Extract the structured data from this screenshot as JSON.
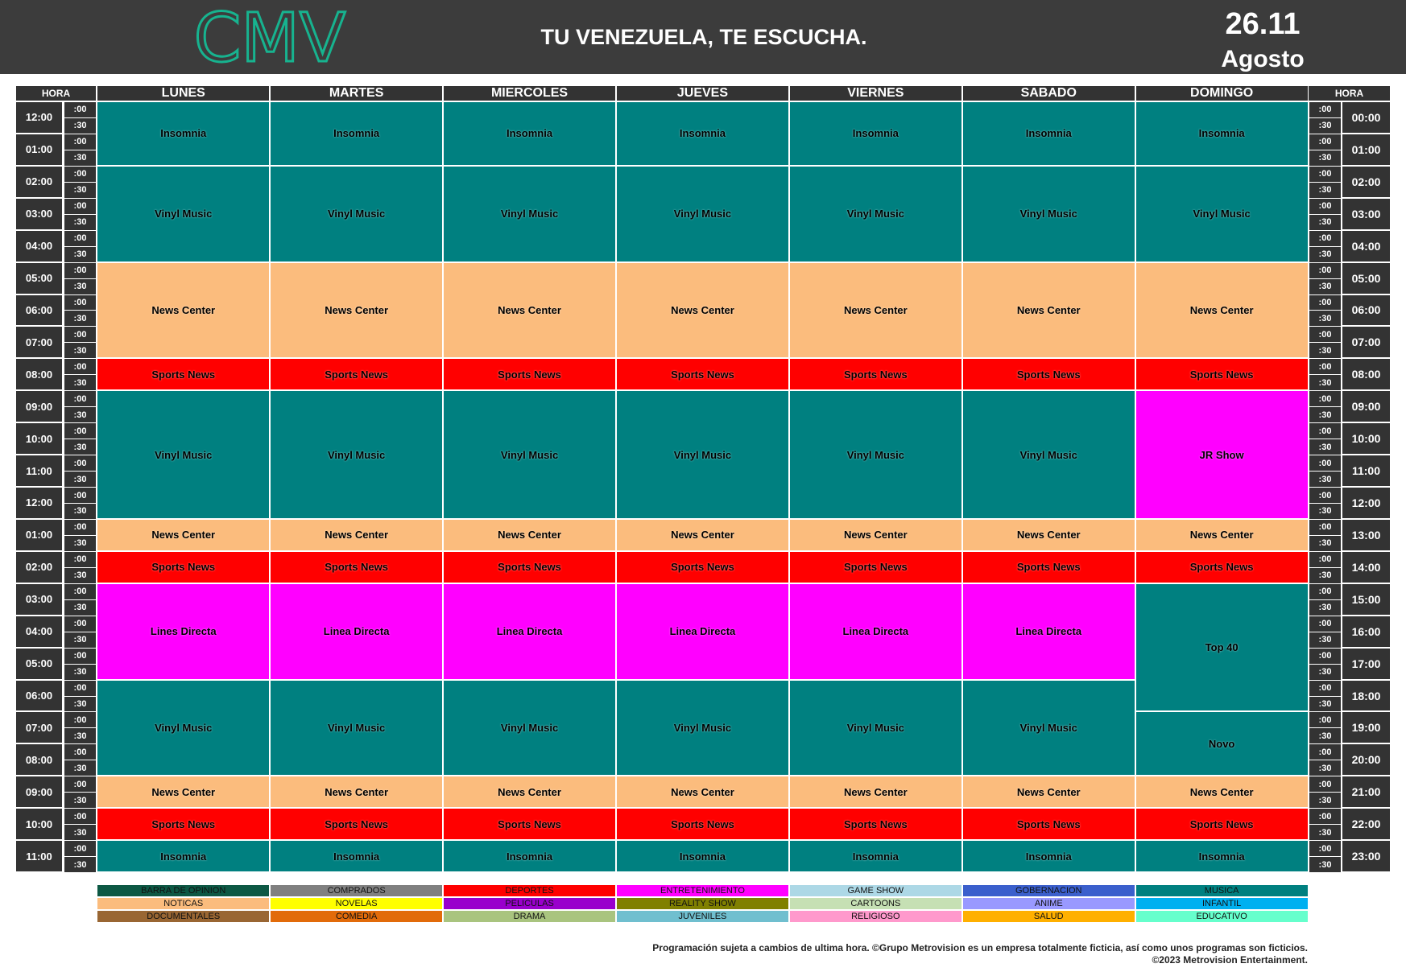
{
  "header": {
    "logo": "CMV",
    "slogan": "TU VENEZUELA, TE ESCUCHA.",
    "date": "26.11",
    "month": "Agosto"
  },
  "schedule": {
    "hour_heading": "HORA",
    "half_labels": [
      ":00",
      ":30"
    ],
    "left_hours": [
      "12:00",
      "01:00",
      "02:00",
      "03:00",
      "04:00",
      "05:00",
      "06:00",
      "07:00",
      "08:00",
      "09:00",
      "10:00",
      "11:00",
      "12:00",
      "01:00",
      "02:00",
      "03:00",
      "04:00",
      "05:00",
      "06:00",
      "07:00",
      "08:00",
      "09:00",
      "10:00",
      "11:00"
    ],
    "right_hours": [
      "00:00",
      "01:00",
      "02:00",
      "03:00",
      "04:00",
      "05:00",
      "06:00",
      "07:00",
      "08:00",
      "09:00",
      "10:00",
      "11:00",
      "12:00",
      "13:00",
      "14:00",
      "15:00",
      "16:00",
      "17:00",
      "18:00",
      "19:00",
      "20:00",
      "21:00",
      "22:00",
      "23:00"
    ],
    "days": [
      {
        "name": "LUNES",
        "programs": [
          {
            "name": "Insomnia",
            "hours": 2,
            "color": "#008080"
          },
          {
            "name": "Vinyl Music",
            "hours": 3,
            "color": "#008080"
          },
          {
            "name": "News Center",
            "hours": 3,
            "color": "#fbbc7d"
          },
          {
            "name": "Sports News",
            "hours": 1,
            "color": "#ff0000"
          },
          {
            "name": "Vinyl Music",
            "hours": 4,
            "color": "#008080"
          },
          {
            "name": "News Center",
            "hours": 1,
            "color": "#fbbc7d"
          },
          {
            "name": "Sports News",
            "hours": 1,
            "color": "#ff0000"
          },
          {
            "name": "Lines Directa",
            "hours": 3,
            "color": "#ff00ff"
          },
          {
            "name": "Vinyl Music",
            "hours": 3,
            "color": "#008080"
          },
          {
            "name": "News Center",
            "hours": 1,
            "color": "#fbbc7d"
          },
          {
            "name": "Sports News",
            "hours": 1,
            "color": "#ff0000"
          },
          {
            "name": "Insomnia",
            "hours": 1,
            "color": "#008080"
          }
        ]
      },
      {
        "name": "MARTES",
        "programs": [
          {
            "name": "Insomnia",
            "hours": 2,
            "color": "#008080"
          },
          {
            "name": "Vinyl Music",
            "hours": 3,
            "color": "#008080"
          },
          {
            "name": "News Center",
            "hours": 3,
            "color": "#fbbc7d"
          },
          {
            "name": "Sports News",
            "hours": 1,
            "color": "#ff0000"
          },
          {
            "name": "Vinyl Music",
            "hours": 4,
            "color": "#008080"
          },
          {
            "name": "News Center",
            "hours": 1,
            "color": "#fbbc7d"
          },
          {
            "name": "Sports News",
            "hours": 1,
            "color": "#ff0000"
          },
          {
            "name": "Linea Directa",
            "hours": 3,
            "color": "#ff00ff"
          },
          {
            "name": "Vinyl Music",
            "hours": 3,
            "color": "#008080"
          },
          {
            "name": "News Center",
            "hours": 1,
            "color": "#fbbc7d"
          },
          {
            "name": "Sports News",
            "hours": 1,
            "color": "#ff0000"
          },
          {
            "name": "Insomnia",
            "hours": 1,
            "color": "#008080"
          }
        ]
      },
      {
        "name": "MIERCOLES",
        "programs": [
          {
            "name": "Insomnia",
            "hours": 2,
            "color": "#008080"
          },
          {
            "name": "Vinyl Music",
            "hours": 3,
            "color": "#008080"
          },
          {
            "name": "News Center",
            "hours": 3,
            "color": "#fbbc7d"
          },
          {
            "name": "Sports News",
            "hours": 1,
            "color": "#ff0000"
          },
          {
            "name": "Vinyl Music",
            "hours": 4,
            "color": "#008080"
          },
          {
            "name": "News Center",
            "hours": 1,
            "color": "#fbbc7d"
          },
          {
            "name": "Sports News",
            "hours": 1,
            "color": "#ff0000"
          },
          {
            "name": "Linea Directa",
            "hours": 3,
            "color": "#ff00ff"
          },
          {
            "name": "Vinyl Music",
            "hours": 3,
            "color": "#008080"
          },
          {
            "name": "News Center",
            "hours": 1,
            "color": "#fbbc7d"
          },
          {
            "name": "Sports News",
            "hours": 1,
            "color": "#ff0000"
          },
          {
            "name": "Insomnia",
            "hours": 1,
            "color": "#008080"
          }
        ]
      },
      {
        "name": "JUEVES",
        "programs": [
          {
            "name": "Insomnia",
            "hours": 2,
            "color": "#008080"
          },
          {
            "name": "Vinyl Music",
            "hours": 3,
            "color": "#008080"
          },
          {
            "name": "News Center",
            "hours": 3,
            "color": "#fbbc7d"
          },
          {
            "name": "Sports News",
            "hours": 1,
            "color": "#ff0000"
          },
          {
            "name": "Vinyl Music",
            "hours": 4,
            "color": "#008080"
          },
          {
            "name": "News Center",
            "hours": 1,
            "color": "#fbbc7d"
          },
          {
            "name": "Sports News",
            "hours": 1,
            "color": "#ff0000"
          },
          {
            "name": "Linea Directa",
            "hours": 3,
            "color": "#ff00ff"
          },
          {
            "name": "Vinyl Music",
            "hours": 3,
            "color": "#008080"
          },
          {
            "name": "News Center",
            "hours": 1,
            "color": "#fbbc7d"
          },
          {
            "name": "Sports News",
            "hours": 1,
            "color": "#ff0000"
          },
          {
            "name": "Insomnia",
            "hours": 1,
            "color": "#008080"
          }
        ]
      },
      {
        "name": "VIERNES",
        "programs": [
          {
            "name": "Insomnia",
            "hours": 2,
            "color": "#008080"
          },
          {
            "name": "Vinyl Music",
            "hours": 3,
            "color": "#008080"
          },
          {
            "name": "News Center",
            "hours": 3,
            "color": "#fbbc7d"
          },
          {
            "name": "Sports News",
            "hours": 1,
            "color": "#ff0000"
          },
          {
            "name": "Vinyl Music",
            "hours": 4,
            "color": "#008080"
          },
          {
            "name": "News Center",
            "hours": 1,
            "color": "#fbbc7d"
          },
          {
            "name": "Sports News",
            "hours": 1,
            "color": "#ff0000"
          },
          {
            "name": "Linea Directa",
            "hours": 3,
            "color": "#ff00ff"
          },
          {
            "name": "Vinyl Music",
            "hours": 3,
            "color": "#008080"
          },
          {
            "name": "News Center",
            "hours": 1,
            "color": "#fbbc7d"
          },
          {
            "name": "Sports News",
            "hours": 1,
            "color": "#ff0000"
          },
          {
            "name": "Insomnia",
            "hours": 1,
            "color": "#008080"
          }
        ]
      },
      {
        "name": "SABADO",
        "programs": [
          {
            "name": "Insomnia",
            "hours": 2,
            "color": "#008080"
          },
          {
            "name": "Vinyl Music",
            "hours": 3,
            "color": "#008080"
          },
          {
            "name": "News Center",
            "hours": 3,
            "color": "#fbbc7d"
          },
          {
            "name": "Sports News",
            "hours": 1,
            "color": "#ff0000"
          },
          {
            "name": "Vinyl Music",
            "hours": 4,
            "color": "#008080"
          },
          {
            "name": "News Center",
            "hours": 1,
            "color": "#fbbc7d"
          },
          {
            "name": "Sports News",
            "hours": 1,
            "color": "#ff0000"
          },
          {
            "name": "Linea Directa",
            "hours": 3,
            "color": "#ff00ff"
          },
          {
            "name": "Vinyl Music",
            "hours": 3,
            "color": "#008080"
          },
          {
            "name": "News Center",
            "hours": 1,
            "color": "#fbbc7d"
          },
          {
            "name": "Sports News",
            "hours": 1,
            "color": "#ff0000"
          },
          {
            "name": "Insomnia",
            "hours": 1,
            "color": "#008080"
          }
        ]
      },
      {
        "name": "DOMINGO",
        "programs": [
          {
            "name": "Insomnia",
            "hours": 2,
            "color": "#008080"
          },
          {
            "name": "Vinyl Music",
            "hours": 3,
            "color": "#008080"
          },
          {
            "name": "News Center",
            "hours": 3,
            "color": "#fbbc7d"
          },
          {
            "name": "Sports News",
            "hours": 1,
            "color": "#ff0000"
          },
          {
            "name": "JR Show",
            "hours": 4,
            "color": "#ff00ff"
          },
          {
            "name": "News Center",
            "hours": 1,
            "color": "#fbbc7d"
          },
          {
            "name": "Sports News",
            "hours": 1,
            "color": "#ff0000"
          },
          {
            "name": "Top 40",
            "hours": 4,
            "color": "#008080"
          },
          {
            "name": "Novo",
            "hours": 2,
            "color": "#008080"
          },
          {
            "name": "News Center",
            "hours": 1,
            "color": "#fbbc7d"
          },
          {
            "name": "Sports News",
            "hours": 1,
            "color": "#ff0000"
          },
          {
            "name": "Insomnia",
            "hours": 1,
            "color": "#008080"
          }
        ]
      }
    ]
  },
  "legend": [
    [
      {
        "label": "BARRA DE OPINION",
        "color": "#0d5844"
      },
      {
        "label": "COMPRADOS",
        "color": "#808080"
      },
      {
        "label": "DEPORTES",
        "color": "#ff0000"
      },
      {
        "label": "ENTRETENIMIENTO",
        "color": "#ff00ff"
      },
      {
        "label": "GAME SHOW",
        "color": "#add8e6"
      },
      {
        "label": "GOBERNACION",
        "color": "#3b5fcc"
      },
      {
        "label": "MUSICA",
        "color": "#008080"
      }
    ],
    [
      {
        "label": "NOTICAS",
        "color": "#fbbc7d"
      },
      {
        "label": "NOVELAS",
        "color": "#ffff00"
      },
      {
        "label": "PELICULAS",
        "color": "#9900cc"
      },
      {
        "label": "REALITY SHOW",
        "color": "#808000"
      },
      {
        "label": "CARTOONS",
        "color": "#c6e0b4"
      },
      {
        "label": "ANIME",
        "color": "#9999ff"
      },
      {
        "label": "INFANTIL",
        "color": "#00b0f0"
      }
    ],
    [
      {
        "label": "DOCUMENTALES",
        "color": "#996633"
      },
      {
        "label": "COMEDIA",
        "color": "#e26b0a"
      },
      {
        "label": "DRAMA",
        "color": "#a9c47f"
      },
      {
        "label": "JUVENILES",
        "color": "#70bfcf"
      },
      {
        "label": "RELIGIOSO",
        "color": "#ff99cc"
      },
      {
        "label": "SALUD",
        "color": "#ffb000"
      },
      {
        "label": "EDUCATIVO",
        "color": "#66ffcc"
      }
    ]
  ],
  "footer": [
    "Programación sujeta a cambios de ultima hora. ©Grupo Metrovision es un empresa totalmente ficticia, así como unos programas son ficticios.",
    "©2023 Metrovision Entertainment."
  ]
}
